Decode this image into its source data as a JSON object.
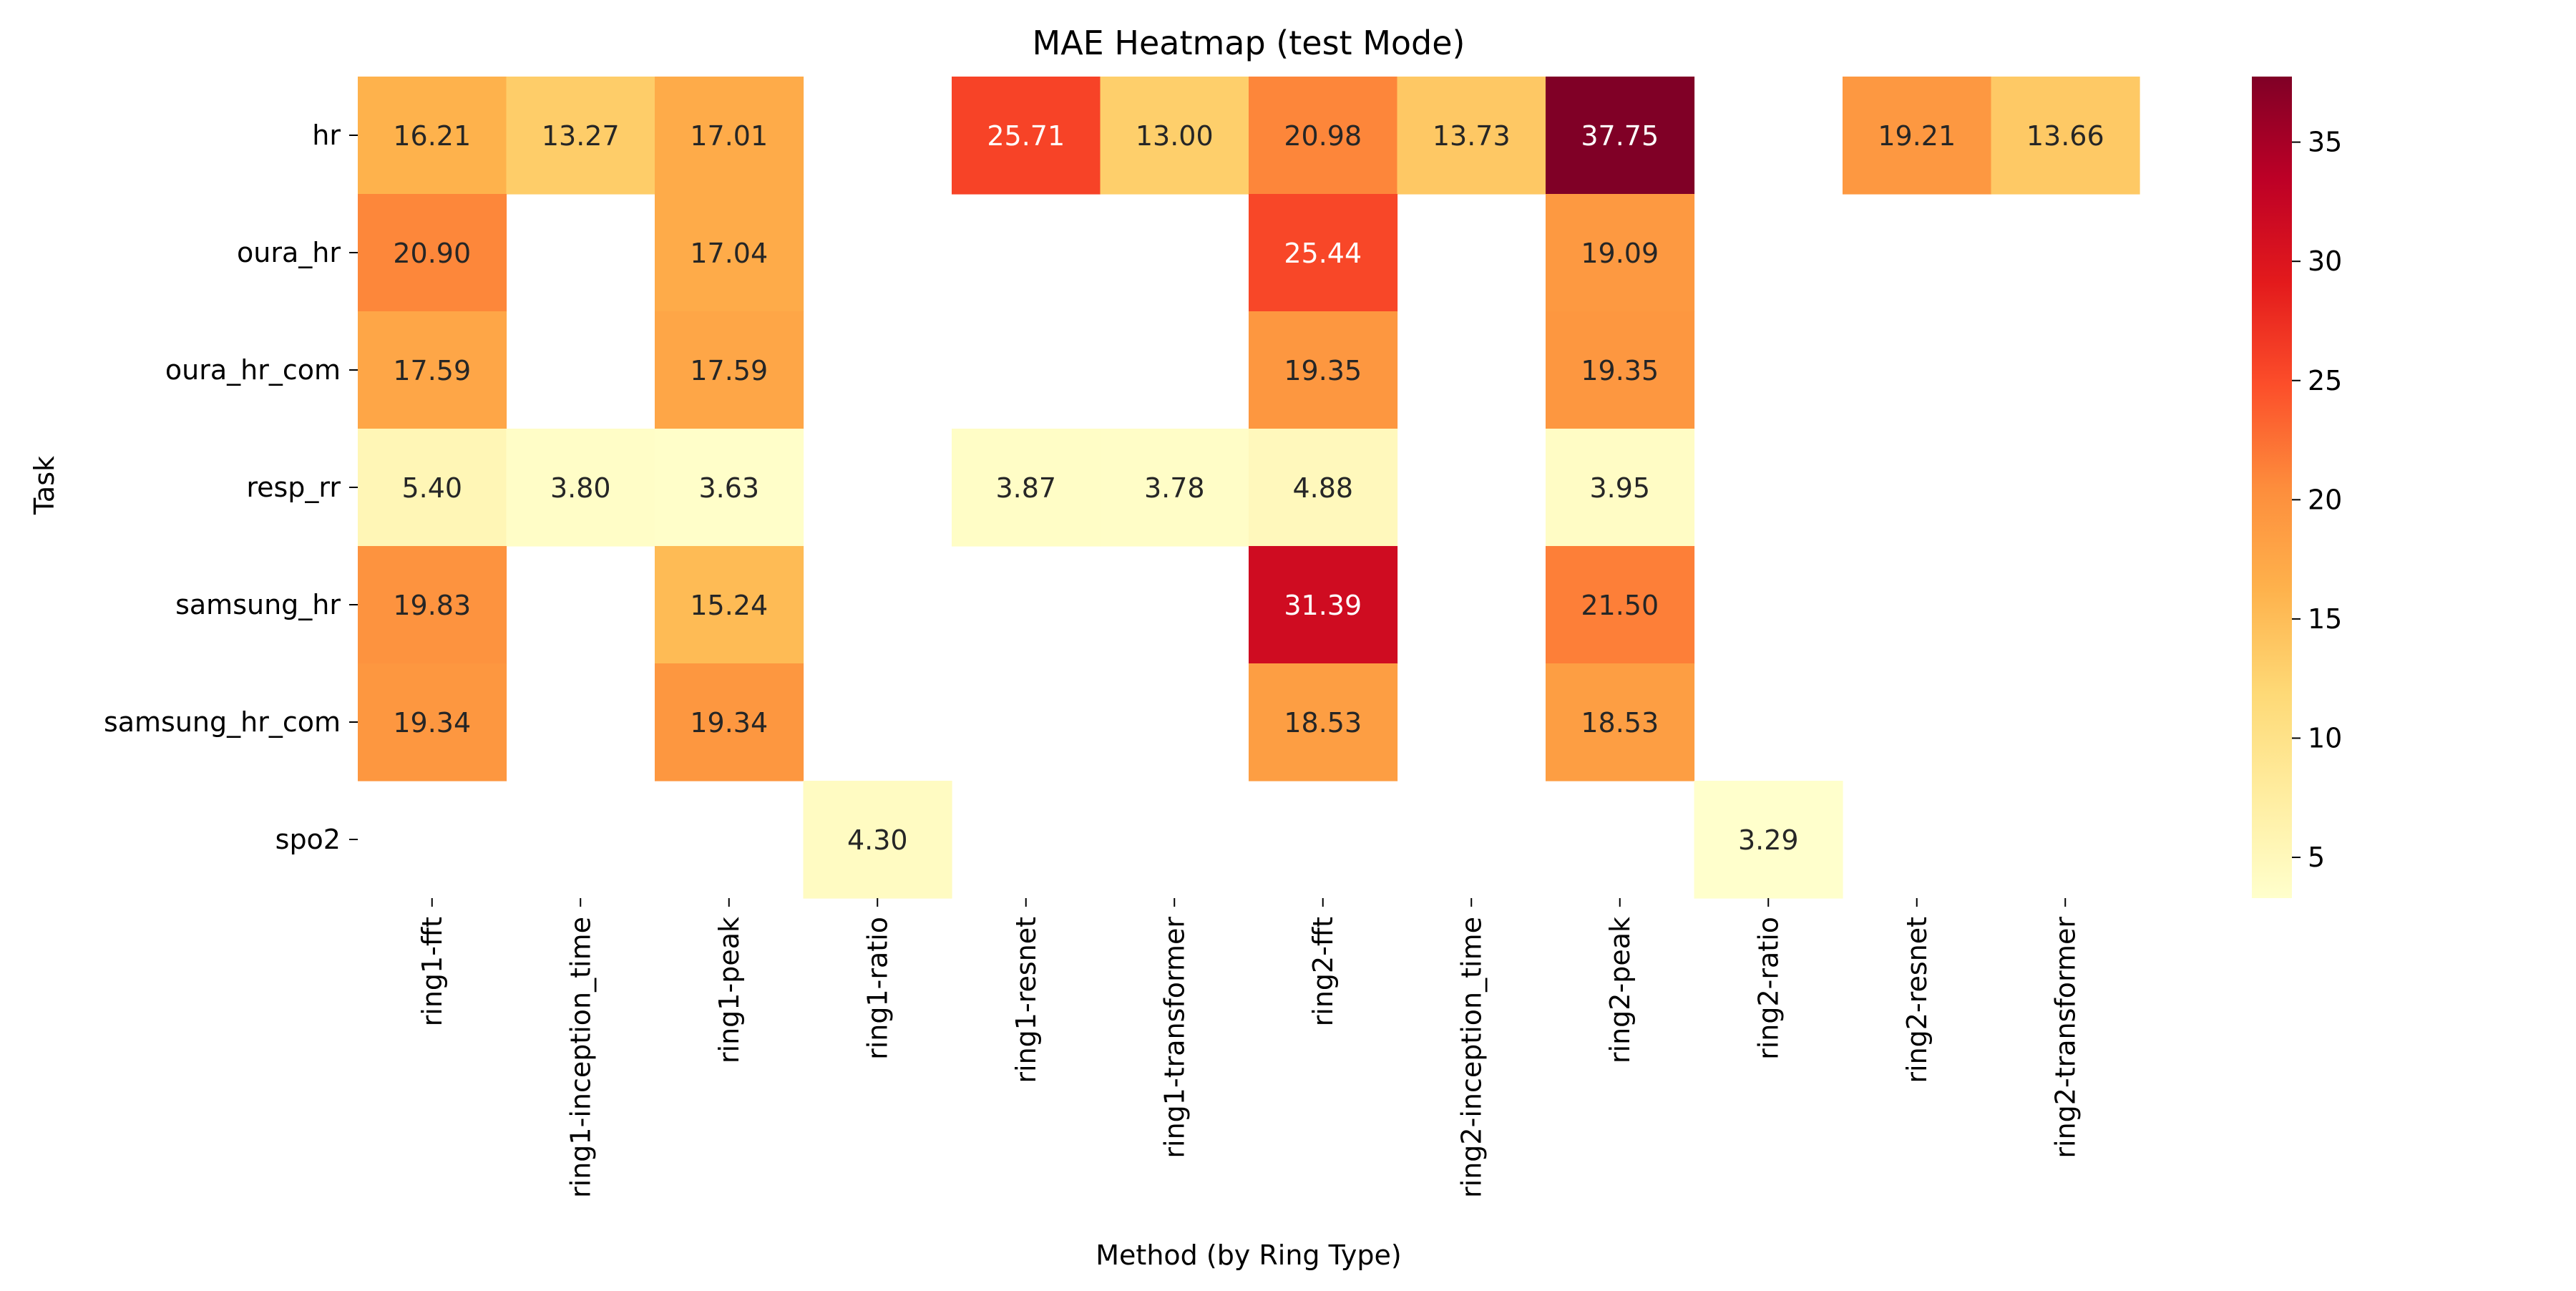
{
  "chart_data": {
    "type": "heatmap",
    "title": "MAE Heatmap (test Mode)",
    "xlabel": "Method (by Ring Type)",
    "ylabel": "Task",
    "x_categories": [
      "ring1-fft",
      "ring1-inception_time",
      "ring1-peak",
      "ring1-ratio",
      "ring1-resnet",
      "ring1-transformer",
      "ring2-fft",
      "ring2-inception_time",
      "ring2-peak",
      "ring2-ratio",
      "ring2-resnet",
      "ring2-transformer"
    ],
    "y_categories": [
      "hr",
      "oura_hr",
      "oura_hr_com",
      "resp_rr",
      "samsung_hr",
      "samsung_hr_com",
      "spo2"
    ],
    "values": [
      [
        16.21,
        13.27,
        17.01,
        null,
        25.71,
        13.0,
        20.98,
        13.73,
        37.75,
        null,
        19.21,
        13.66
      ],
      [
        20.9,
        null,
        17.04,
        null,
        null,
        null,
        25.44,
        null,
        19.09,
        null,
        null,
        null
      ],
      [
        17.59,
        null,
        17.59,
        null,
        null,
        null,
        19.35,
        null,
        19.35,
        null,
        null,
        null
      ],
      [
        5.4,
        3.8,
        3.63,
        null,
        3.87,
        3.78,
        4.88,
        null,
        3.95,
        null,
        null,
        null
      ],
      [
        19.83,
        null,
        15.24,
        null,
        null,
        null,
        31.39,
        null,
        21.5,
        null,
        null,
        null
      ],
      [
        19.34,
        null,
        19.34,
        null,
        null,
        null,
        18.53,
        null,
        18.53,
        null,
        null,
        null
      ],
      [
        null,
        null,
        null,
        4.3,
        null,
        null,
        null,
        null,
        null,
        3.29,
        null,
        null
      ]
    ],
    "value_format": "2 decimals",
    "colormap": "YlOrRd",
    "color_range": [
      3.29,
      37.75
    ],
    "colorbar_ticks": [
      5,
      10,
      15,
      20,
      25,
      30,
      35
    ],
    "missing_cells": "blank"
  }
}
